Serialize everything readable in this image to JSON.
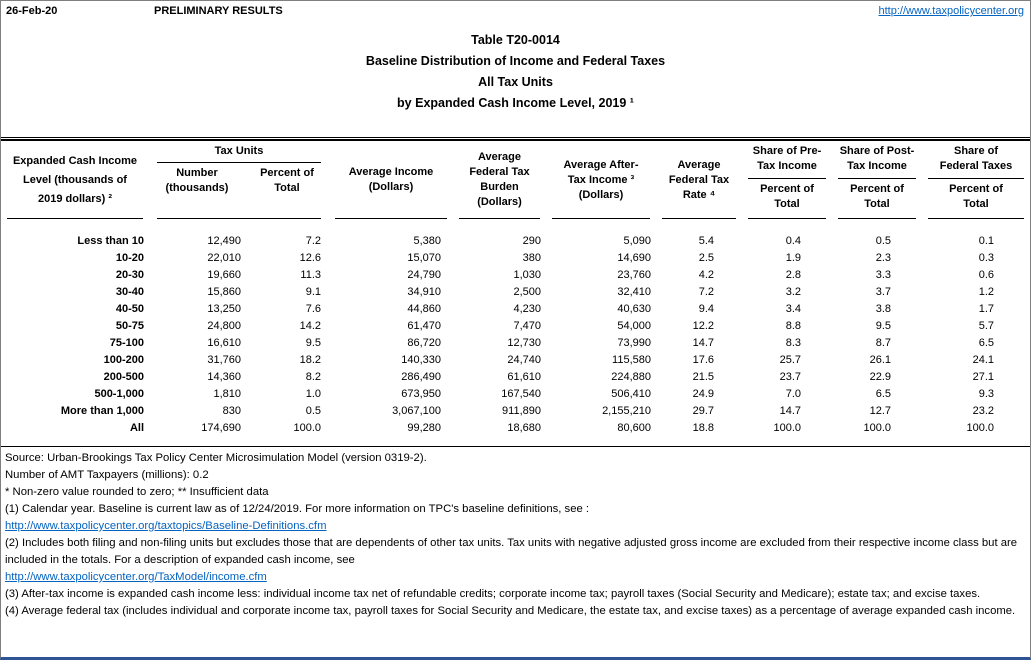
{
  "page": {
    "date": "26-Feb-20",
    "status": "PRELIMINARY RESULTS",
    "site_link": "http://www.taxpolicycenter.org"
  },
  "title": {
    "lines": [
      "Table T20-0014",
      "Baseline Distribution of Income and Federal Taxes",
      "All Tax Units",
      "by Expanded Cash Income Level, 2019 ¹"
    ]
  },
  "table": {
    "columns": {
      "income_level": [
        "Expanded Cash Income",
        "Level (thousands of",
        "2019 dollars) ²"
      ],
      "tax_units_group": "Tax Units",
      "number": [
        "Number",
        "(thousands)"
      ],
      "percent_of_total": [
        "Percent of",
        "Total"
      ],
      "avg_income": [
        "Average Income",
        "(Dollars)"
      ],
      "avg_federal_tax_burden": [
        "Average",
        "Federal Tax",
        "Burden",
        "(Dollars)"
      ],
      "avg_after_tax_income": [
        "Average After-",
        "Tax Income ³",
        "(Dollars)"
      ],
      "avg_federal_tax_rate": [
        "Average",
        "Federal Tax",
        "Rate ⁴"
      ],
      "share_pre_tax_income": [
        "Share of Pre-",
        "Tax Income"
      ],
      "share_post_tax_income": [
        "Share of Post-",
        "Tax Income"
      ],
      "share_federal_taxes": [
        "Share of",
        "Federal Taxes"
      ],
      "percent_sub": [
        "Percent of",
        "Total"
      ]
    },
    "rows": [
      [
        "Less than 10",
        "12,490",
        "7.2",
        "5,380",
        "290",
        "5,090",
        "5.4",
        "0.4",
        "0.5",
        "0.1"
      ],
      [
        "10-20",
        "22,010",
        "12.6",
        "15,070",
        "380",
        "14,690",
        "2.5",
        "1.9",
        "2.3",
        "0.3"
      ],
      [
        "20-30",
        "19,660",
        "11.3",
        "24,790",
        "1,030",
        "23,760",
        "4.2",
        "2.8",
        "3.3",
        "0.6"
      ],
      [
        "30-40",
        "15,860",
        "9.1",
        "34,910",
        "2,500",
        "32,410",
        "7.2",
        "3.2",
        "3.7",
        "1.2"
      ],
      [
        "40-50",
        "13,250",
        "7.6",
        "44,860",
        "4,230",
        "40,630",
        "9.4",
        "3.4",
        "3.8",
        "1.7"
      ],
      [
        "50-75",
        "24,800",
        "14.2",
        "61,470",
        "7,470",
        "54,000",
        "12.2",
        "8.8",
        "9.5",
        "5.7"
      ],
      [
        "75-100",
        "16,610",
        "9.5",
        "86,720",
        "12,730",
        "73,990",
        "14.7",
        "8.3",
        "8.7",
        "6.5"
      ],
      [
        "100-200",
        "31,760",
        "18.2",
        "140,330",
        "24,740",
        "115,580",
        "17.6",
        "25.7",
        "26.1",
        "24.1"
      ],
      [
        "200-500",
        "14,360",
        "8.2",
        "286,490",
        "61,610",
        "224,880",
        "21.5",
        "23.7",
        "22.9",
        "27.1"
      ],
      [
        "500-1,000",
        "1,810",
        "1.0",
        "673,950",
        "167,540",
        "506,410",
        "24.9",
        "7.0",
        "6.5",
        "9.3"
      ],
      [
        "More than 1,000",
        "830",
        "0.5",
        "3,067,100",
        "911,890",
        "2,155,210",
        "29.7",
        "14.7",
        "12.7",
        "23.2"
      ],
      [
        "All",
        "174,690",
        "100.0",
        "99,280",
        "18,680",
        "80,600",
        "18.8",
        "100.0",
        "100.0",
        "100.0"
      ]
    ]
  },
  "notes": {
    "lines": [
      {
        "text": "Source: Urban-Brookings Tax Policy Center Microsimulation Model (version 0319-2)."
      },
      {
        "text": "Number of AMT Taxpayers (millions): 0.2"
      },
      {
        "text": "* Non-zero value rounded to zero; ** Insufficient data"
      },
      {
        "text": "(1) Calendar year. Baseline is current law as of 12/24/2019. For more information on TPC's baseline definitions, see :"
      },
      {
        "link": "http://www.taxpolicycenter.org/taxtopics/Baseline-Definitions.cfm"
      },
      {
        "text": "(2) Includes both filing and non-filing units but excludes those that are dependents of other tax units. Tax units with negative adjusted gross income are excluded from their respective income class but are included in the totals. For a description of expanded cash income, see"
      },
      {
        "link": "http://www.taxpolicycenter.org/TaxModel/income.cfm"
      },
      {
        "text": "(3) After-tax income is expanded cash income less: individual income tax net of refundable credits; corporate income tax; payroll taxes (Social Security and Medicare); estate tax; and excise taxes."
      },
      {
        "text": "(4) Average federal tax (includes individual and corporate income tax, payroll taxes for Social Security and Medicare, the estate tax, and excise taxes) as a percentage of average expanded cash income."
      }
    ]
  }
}
